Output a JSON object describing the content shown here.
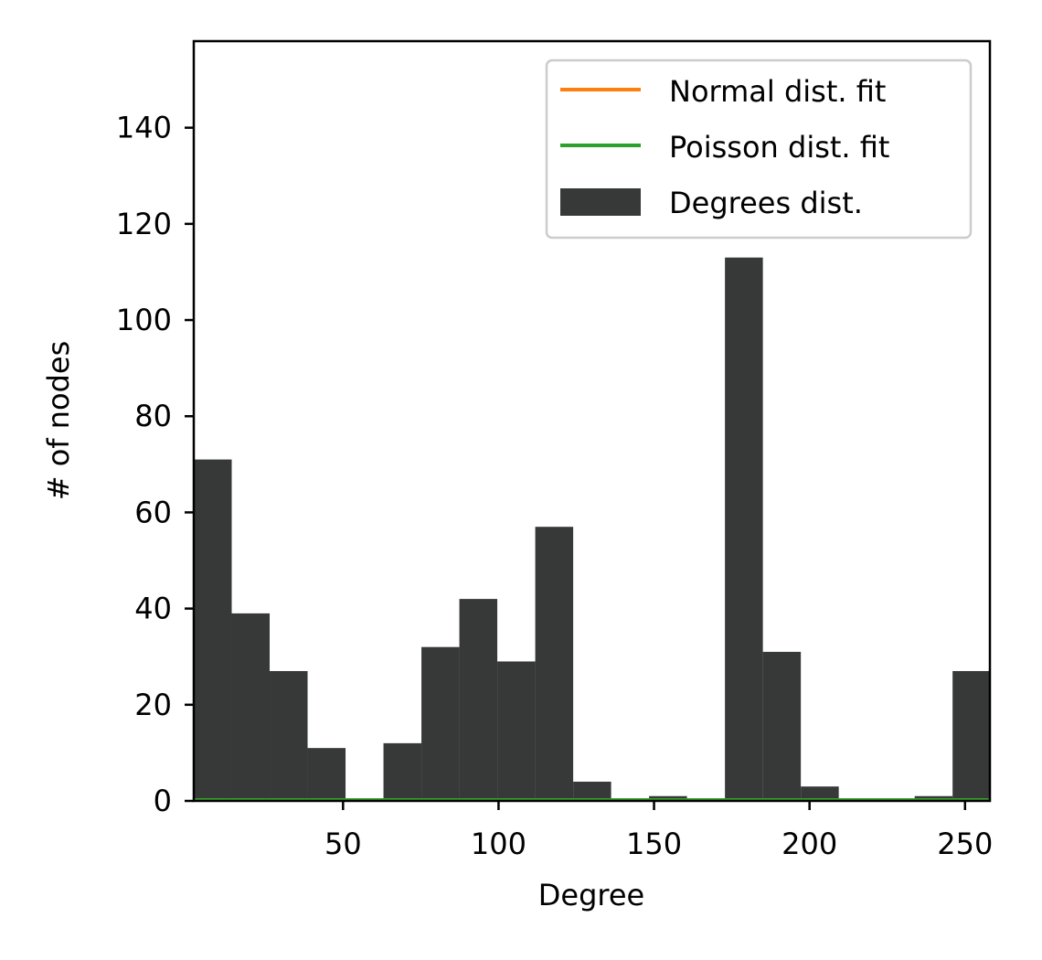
{
  "chart_data": {
    "type": "bar",
    "title": "",
    "xlabel": "Degree",
    "ylabel": "# of nodes",
    "xlim": [
      2,
      258
    ],
    "ylim": [
      0,
      158
    ],
    "x_ticks": [
      50,
      100,
      150,
      200,
      250
    ],
    "y_ticks": [
      0,
      20,
      40,
      60,
      80,
      100,
      120,
      140
    ],
    "bin_edges": [
      2,
      14.2,
      26.4,
      38.6,
      50.8,
      63,
      75.2,
      87.4,
      99.6,
      111.8,
      124,
      136.2,
      148.4,
      160.6,
      172.8,
      185,
      197.2,
      209.4,
      221.6,
      233.8,
      246,
      258.2
    ],
    "bins": [
      {
        "x": "2-14",
        "value": 71
      },
      {
        "x": "14-26",
        "value": 39
      },
      {
        "x": "26-39",
        "value": 27
      },
      {
        "x": "39-51",
        "value": 11
      },
      {
        "x": "51-63",
        "value": 0
      },
      {
        "x": "63-75",
        "value": 12
      },
      {
        "x": "75-87",
        "value": 32
      },
      {
        "x": "87-100",
        "value": 42
      },
      {
        "x": "100-112",
        "value": 29
      },
      {
        "x": "112-124",
        "value": 57
      },
      {
        "x": "124-136",
        "value": 4
      },
      {
        "x": "136-148",
        "value": 0
      },
      {
        "x": "148-161",
        "value": 1
      },
      {
        "x": "161-173",
        "value": 0
      },
      {
        "x": "173-185",
        "value": 113
      },
      {
        "x": "185-197",
        "value": 31
      },
      {
        "x": "197-209",
        "value": 3
      },
      {
        "x": "209-222",
        "value": 0
      },
      {
        "x": "222-234",
        "value": 0
      },
      {
        "x": "234-246",
        "value": 1
      },
      {
        "x": "246-258",
        "value": 27
      }
    ],
    "series": [
      {
        "name": "Normal dist. fit",
        "type": "line",
        "color": "#ff7f0e",
        "y_constant": 0.3
      },
      {
        "name": "Poisson dist. fit",
        "type": "line",
        "color": "#2ca02c",
        "y_constant": 0.3
      },
      {
        "name": "Degrees dist.",
        "type": "bar",
        "color": "#373938"
      }
    ],
    "legend": {
      "position": "top-right",
      "entries": [
        "Normal dist. fit",
        "Poisson dist. fit",
        "Degrees dist."
      ]
    },
    "grid": false
  }
}
